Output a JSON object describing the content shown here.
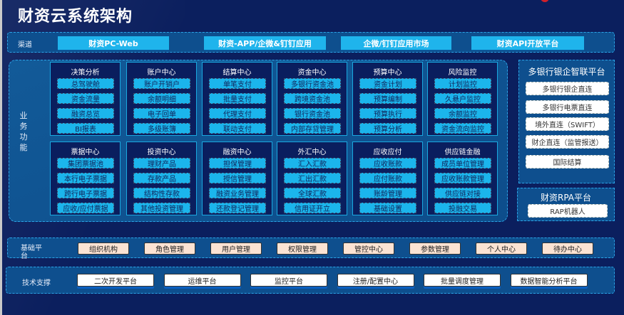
{
  "title": "财资云系统架构",
  "channel": {
    "label": "渠道",
    "items": [
      "财资PC-Web",
      "财资-APP/企微&钉钉应用",
      "企微/钉钉应用市场",
      "财资API开放平台"
    ]
  },
  "business": {
    "label": "业务功能",
    "modules": [
      {
        "title": "决策分析",
        "items": [
          "总驾驶舱",
          "资金流量",
          "融资总览",
          "BI报表"
        ]
      },
      {
        "title": "账户中心",
        "items": [
          "账户开销户",
          "余额明细",
          "电子回单",
          "多级账簿"
        ]
      },
      {
        "title": "结算中心",
        "items": [
          "单笔支付",
          "批量支付",
          "代理支付",
          "联动支付"
        ]
      },
      {
        "title": "资金中心",
        "items": [
          "多银行资金池",
          "跨境资金池",
          "银行资金池",
          "内部存贷管理"
        ]
      },
      {
        "title": "预算中心",
        "items": [
          "资金计划",
          "预算编制",
          "预算执行",
          "预算分析"
        ]
      },
      {
        "title": "风险监控",
        "items": [
          "计划监控",
          "久悬户监控",
          "余额监控",
          "资金流向监控"
        ]
      },
      {
        "title": "票据中心",
        "items": [
          "集团票据池",
          "本行电子票据",
          "跨行电子票据",
          "应收/应付票据"
        ]
      },
      {
        "title": "投资中心",
        "items": [
          "理财产品",
          "存款产品",
          "结构性存款",
          "其他投资管理"
        ]
      },
      {
        "title": "融资中心",
        "items": [
          "担保管理",
          "授信管理",
          "融资业务管理",
          "还款登记管理"
        ]
      },
      {
        "title": "外汇中心",
        "items": [
          "汇入汇款",
          "汇出汇款",
          "全球汇款",
          "信用证开立"
        ]
      },
      {
        "title": "应收应付",
        "items": [
          "应收账款",
          "应付账款",
          "账龄管理",
          "基础设置"
        ]
      },
      {
        "title": "供应链金融",
        "items": [
          "成员单位管理",
          "应收账款管理",
          "供应链对接",
          "投融交易"
        ]
      }
    ]
  },
  "bank_platform": {
    "title": "多银行银企智联平台",
    "items": [
      "多银行银企直连",
      "多银行电票直连",
      "境外直连（SWIFT）",
      "财企直连（监管报送）",
      "国际结算"
    ]
  },
  "rpa_platform": {
    "title": "财资RPA平台",
    "items": [
      "RAP机器人"
    ]
  },
  "base_platform": {
    "label": "基础平台",
    "items": [
      "组织机构",
      "角色管理",
      "用户管理",
      "权限管理",
      "管控中心",
      "参数管理",
      "个人中心",
      "待办中心"
    ]
  },
  "tech_support": {
    "label": "技术支撑",
    "items": [
      "二次开发平台",
      "运维平台",
      "监控平台",
      "注册/配置中心",
      "批量调度管理",
      "数据智能分析平台"
    ]
  },
  "colors": {
    "background": "#0b1f5e",
    "panel": "#0e4f8e",
    "accent": "#1bb5ec",
    "base_button": "#fbe3d3"
  }
}
